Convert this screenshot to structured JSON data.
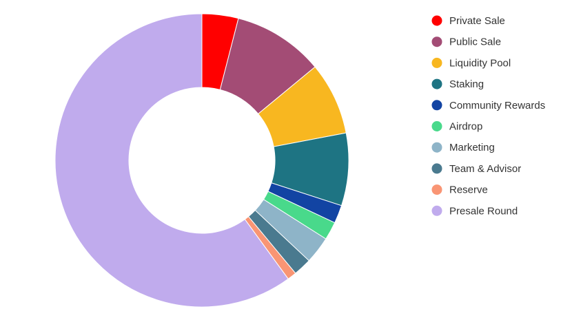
{
  "chart_data": {
    "type": "pie",
    "variant": "donut",
    "legend_position": "right",
    "labels": [
      "Private Sale",
      "Public Sale",
      "Liquidity Pool",
      "Staking",
      "Community Rewards",
      "Airdrop",
      "Marketing",
      "Team & Advisor",
      "Reserve",
      "Presale Round"
    ],
    "values": [
      4,
      10,
      8,
      8,
      2,
      2,
      3,
      2,
      1,
      60
    ],
    "colors": [
      "#ff0000",
      "#a34c75",
      "#f8b720",
      "#1e7483",
      "#1244a3",
      "#49d98b",
      "#8eb4c8",
      "#4a7a8f",
      "#f99574",
      "#c0abed"
    ]
  }
}
